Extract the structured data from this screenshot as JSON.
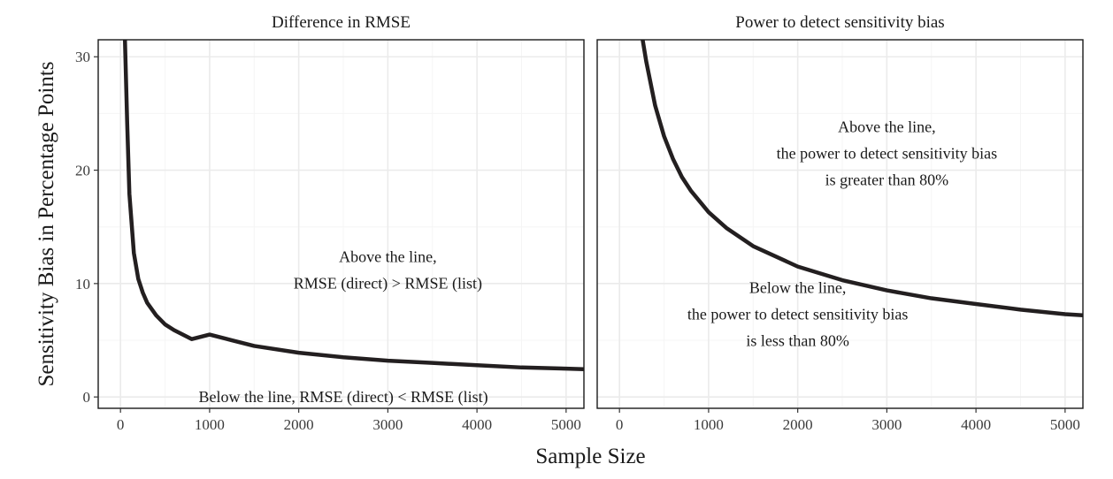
{
  "chart_data": {
    "type": "line",
    "xlabel": "Sample Size",
    "ylabel": "Sensitivity Bias in Percentage Points",
    "x_ticks": [
      0,
      1000,
      2000,
      3000,
      4000,
      5000
    ],
    "y_ticks": [
      0,
      10,
      20,
      30
    ],
    "xlim": [
      -250,
      5200
    ],
    "ylim": [
      -1,
      31.5
    ],
    "grid": true,
    "panels": [
      {
        "title": "Difference in RMSE",
        "series": [
          {
            "x": [
              50,
              75,
              100,
              150,
              200,
              250,
              300,
              400,
              500,
              600,
              800,
              1000,
              1250,
              1500,
              2000,
              2500,
              3000,
              3500,
              4000,
              4500,
              5000,
              5200
            ],
            "y": [
              31.5,
              24.2,
              17.9,
              12.7,
              10.4,
              9.2,
              8.3,
              7.2,
              6.4,
              5.9,
              5.1,
              5.5,
              5.0,
              4.5,
              3.9,
              3.5,
              3.2,
              3.0,
              2.8,
              2.6,
              2.5,
              2.45
            ]
          }
        ],
        "annotations": [
          {
            "lines": [
              "Above the line,",
              "RMSE (direct) > RMSE (list)"
            ],
            "x": 3000,
            "y": 11.2
          },
          {
            "lines": [
              "Below the line, RMSE (direct) < RMSE (list)"
            ],
            "x": 2500,
            "y": 0
          }
        ]
      },
      {
        "title": "Power to detect sensitivity bias",
        "series": [
          {
            "x": [
              260,
              300,
              400,
              500,
              600,
              700,
              800,
              1000,
              1200,
              1500,
              2000,
              2500,
              3000,
              3500,
              4000,
              4500,
              5000,
              5200
            ],
            "y": [
              31.5,
              29.6,
              25.7,
              23.0,
              21.0,
              19.4,
              18.2,
              16.3,
              14.9,
              13.3,
              11.5,
              10.3,
              9.4,
              8.7,
              8.2,
              7.7,
              7.3,
              7.2
            ]
          }
        ],
        "annotations": [
          {
            "lines": [
              "Above the line,",
              "the power to detect sensitivity bias",
              "is greater than 80%"
            ],
            "x": 3000,
            "y": 21.5
          },
          {
            "lines": [
              "Below the line,",
              "the power to detect sensitivity bias",
              "is less than 80%"
            ],
            "x": 2000,
            "y": 7.3
          }
        ]
      }
    ]
  }
}
